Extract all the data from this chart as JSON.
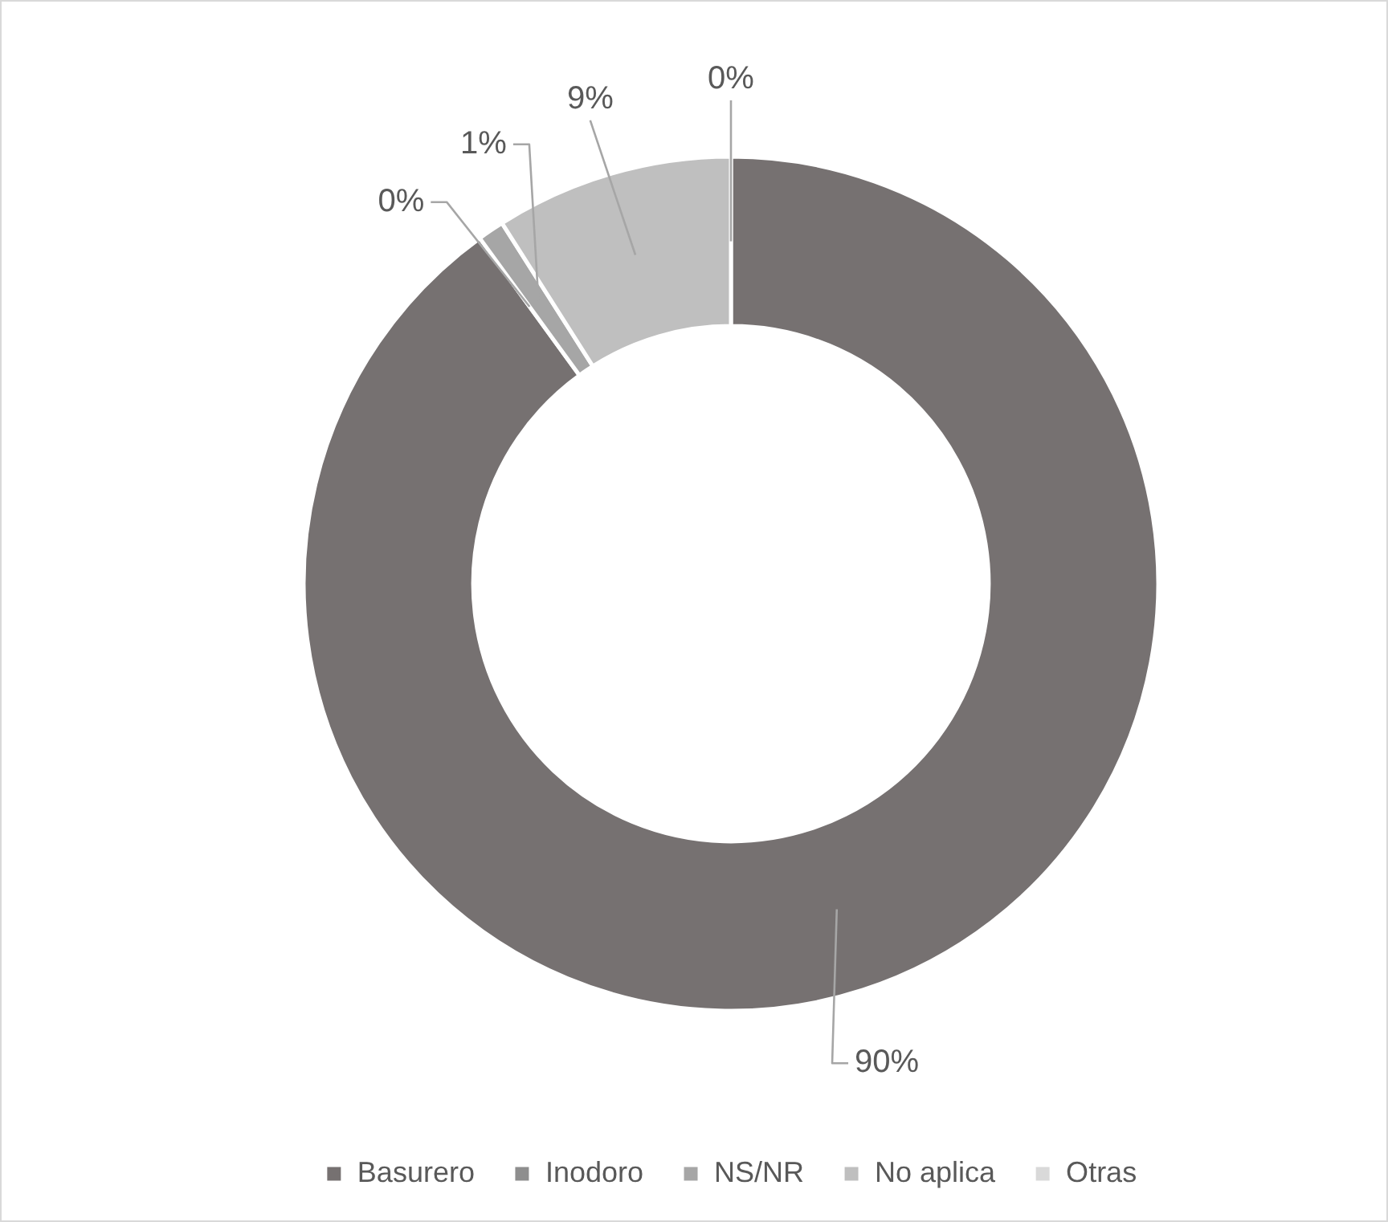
{
  "chart_data": {
    "type": "donut",
    "categories": [
      "Basurero",
      "Inodoro",
      "NS/NR",
      "No aplica",
      "Otras"
    ],
    "values": [
      90,
      0,
      1,
      9,
      0
    ],
    "colors": [
      "#767171",
      "#8e8e8e",
      "#a6a6a6",
      "#bfbfbf",
      "#d9d9d9"
    ],
    "value_labels": [
      "90%",
      "0%",
      "1%",
      "9%",
      "0%"
    ],
    "legend": "bottom"
  }
}
